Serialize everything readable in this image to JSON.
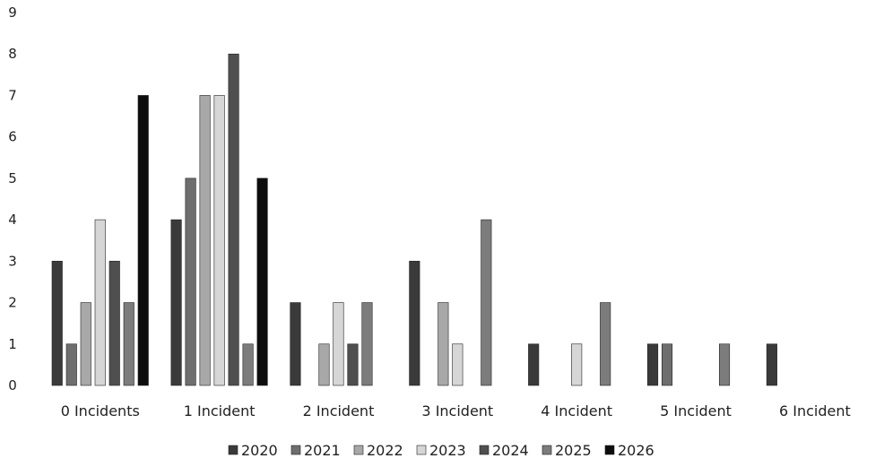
{
  "chart_data": {
    "type": "bar",
    "categories": [
      "0 Incidents",
      "1 Incident",
      "2 Incident",
      "3 Incident",
      "4 Incident",
      "5 Incident",
      "6 Incident"
    ],
    "series": [
      {
        "name": "2020",
        "values": [
          3,
          4,
          2,
          3,
          1,
          1,
          1
        ],
        "color": "#3a3a3a"
      },
      {
        "name": "2021",
        "values": [
          1,
          5,
          0,
          0,
          0,
          1,
          0
        ],
        "color": "#6e6e6e"
      },
      {
        "name": "2022",
        "values": [
          2,
          7,
          1,
          2,
          0,
          0,
          0
        ],
        "color": "#a8a8a8"
      },
      {
        "name": "2023",
        "values": [
          4,
          7,
          2,
          1,
          1,
          0,
          0
        ],
        "color": "#d6d6d6"
      },
      {
        "name": "2024",
        "values": [
          3,
          8,
          1,
          0,
          0,
          0,
          0
        ],
        "color": "#4f4f4f"
      },
      {
        "name": "2025",
        "values": [
          2,
          1,
          2,
          4,
          2,
          1,
          0
        ],
        "color": "#7c7c7c"
      },
      {
        "name": "2026",
        "values": [
          7,
          5,
          0,
          0,
          0,
          0,
          0
        ],
        "color": "#0d0d0d"
      }
    ],
    "y_ticks": [
      "0",
      "1",
      "2",
      "3",
      "4",
      "5",
      "6",
      "7",
      "8",
      "9"
    ],
    "ylim": [
      0,
      9
    ],
    "grid": false,
    "legend": "bottom"
  }
}
